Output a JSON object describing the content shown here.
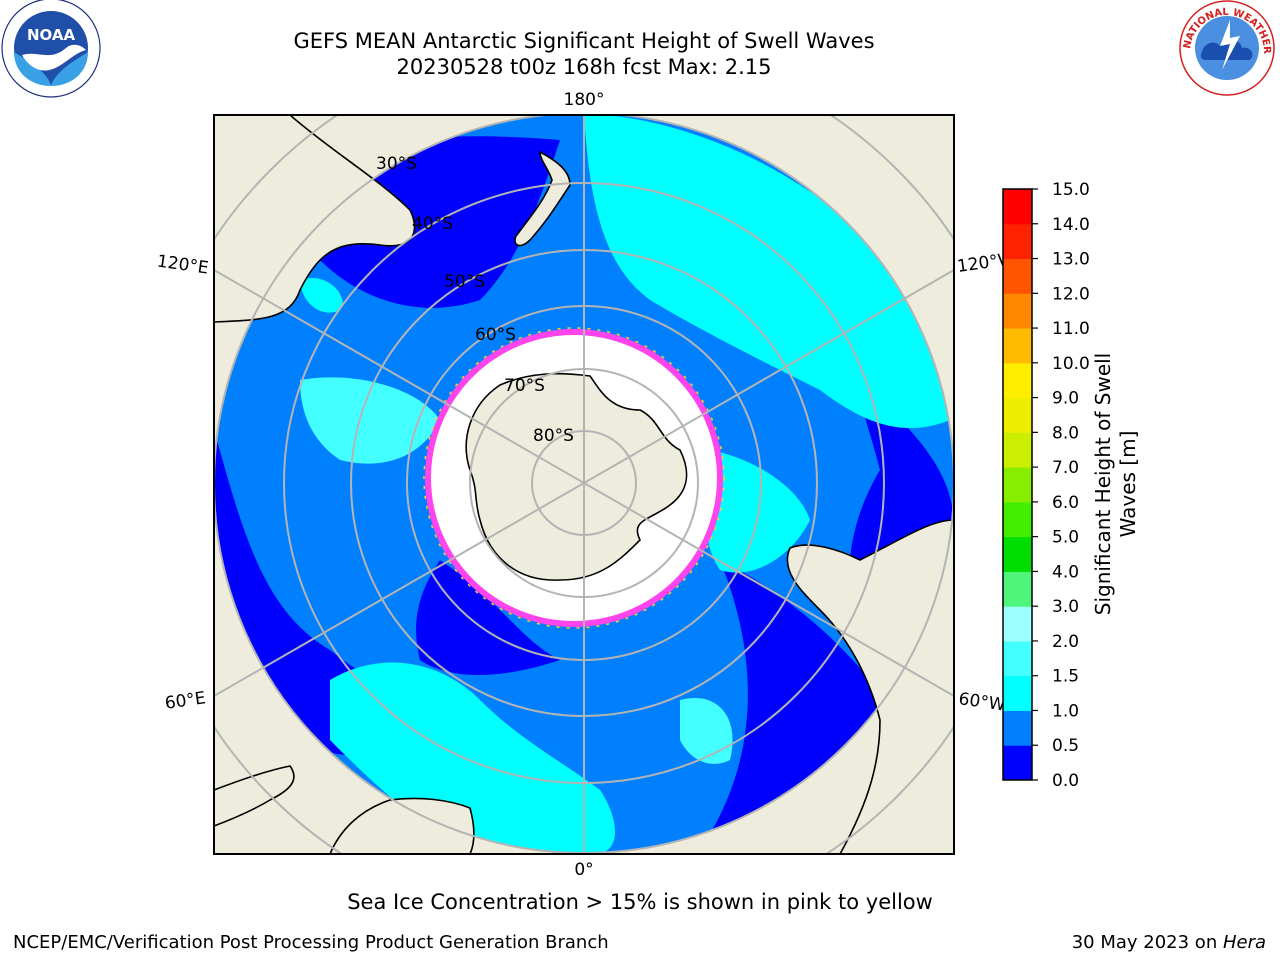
{
  "header": {
    "title_line1": "GEFS MEAN Antarctic Significant Height of Swell Waves",
    "title_line2": "20230528 t00z 168h fcst   Max: 2.15"
  },
  "logos": {
    "noaa": {
      "name": "noaa-logo",
      "text": "NOAA"
    },
    "nws": {
      "name": "national-weather-service-logo",
      "text": "NATIONAL WEATHER SERVICE"
    }
  },
  "map": {
    "projection": "south-polar-stereographic",
    "meridian_labels": {
      "top": "180°",
      "bottom": "0°",
      "left_upper": "120°E",
      "left_lower": "60°E",
      "right_upper": "120°W",
      "right_lower": "60°W"
    },
    "parallel_labels": [
      "30°S",
      "40°S",
      "50°S",
      "60°S",
      "70°S",
      "80°S"
    ],
    "colors": {
      "land": "#eeecdc",
      "ice_edge": "#ff44ee",
      "grid": "#b4b4b4",
      "ocean_low": "#0000ff",
      "ocean_mid": "#0080ff",
      "ocean_high": "#00ffff"
    }
  },
  "colorbar": {
    "title_line1": "Significant Height of Swell",
    "title_line2": "Waves [m]",
    "ticks": [
      "0.0",
      "0.5",
      "1.0",
      "1.5",
      "2.0",
      "3.0",
      "4.0",
      "5.0",
      "6.0",
      "7.0",
      "8.0",
      "9.0",
      "10.0",
      "11.0",
      "12.0",
      "13.0",
      "14.0",
      "15.0"
    ],
    "colors": [
      "#0000ff",
      "#0080ff",
      "#00ffff",
      "#44ffff",
      "#9efffe",
      "#4ef57a",
      "#00dd00",
      "#44ee00",
      "#88ee00",
      "#ccee00",
      "#eeee00",
      "#ffee00",
      "#ffbb00",
      "#ff8800",
      "#ff5500",
      "#ff2200",
      "#ff0000"
    ]
  },
  "footer": {
    "note": "Sea Ice Concentration > 15% is shown in pink to yellow",
    "credit": "NCEP/EMC/Verification Post Processing Product Generation Branch",
    "date": "30 May 2023 on ",
    "machine": "Hera"
  }
}
